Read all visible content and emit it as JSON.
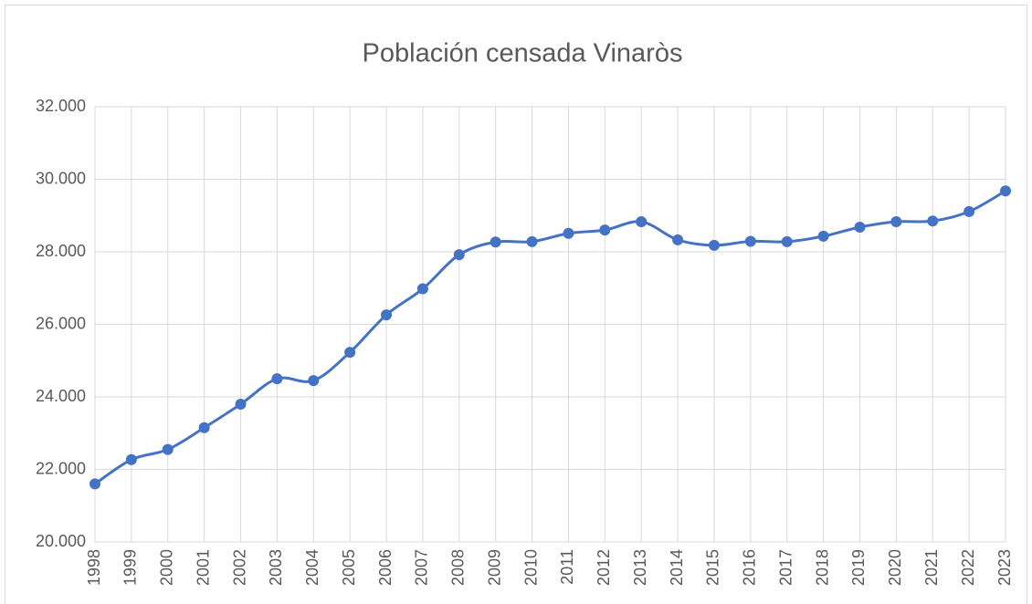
{
  "chart_data": {
    "type": "line",
    "title": "Población censada Vinaròs",
    "x": [
      1998,
      1999,
      2000,
      2001,
      2002,
      2003,
      2004,
      2005,
      2006,
      2007,
      2008,
      2009,
      2010,
      2011,
      2012,
      2013,
      2014,
      2015,
      2016,
      2017,
      2018,
      2019,
      2020,
      2021,
      2022,
      2023
    ],
    "series": [
      {
        "name": "Población censada Vinaròs",
        "color": "#4472c4",
        "values": [
          21600,
          22270,
          22550,
          23150,
          23800,
          24500,
          24450,
          25230,
          26260,
          26980,
          27920,
          28270,
          28280,
          28510,
          28600,
          28830,
          28330,
          28180,
          28290,
          28280,
          28430,
          28680,
          28830,
          28850,
          29110,
          29680
        ]
      }
    ],
    "xlim": [
      1998,
      2023
    ],
    "xticks": [
      1998,
      1999,
      2000,
      2001,
      2002,
      2003,
      2004,
      2005,
      2006,
      2007,
      2008,
      2009,
      2010,
      2011,
      2012,
      2013,
      2014,
      2015,
      2016,
      2017,
      2018,
      2019,
      2020,
      2021,
      2022,
      2023
    ],
    "ylim": [
      20000,
      32000
    ],
    "yticks": [
      {
        "value": 20000,
        "label": "20.000"
      },
      {
        "value": 22000,
        "label": "22.000"
      },
      {
        "value": 24000,
        "label": "24.000"
      },
      {
        "value": 26000,
        "label": "26.000"
      },
      {
        "value": 28000,
        "label": "28.000"
      },
      {
        "value": 30000,
        "label": "30.000"
      },
      {
        "value": 32000,
        "label": "32.000"
      }
    ],
    "grid": true,
    "smooth": true,
    "markers": true
  }
}
